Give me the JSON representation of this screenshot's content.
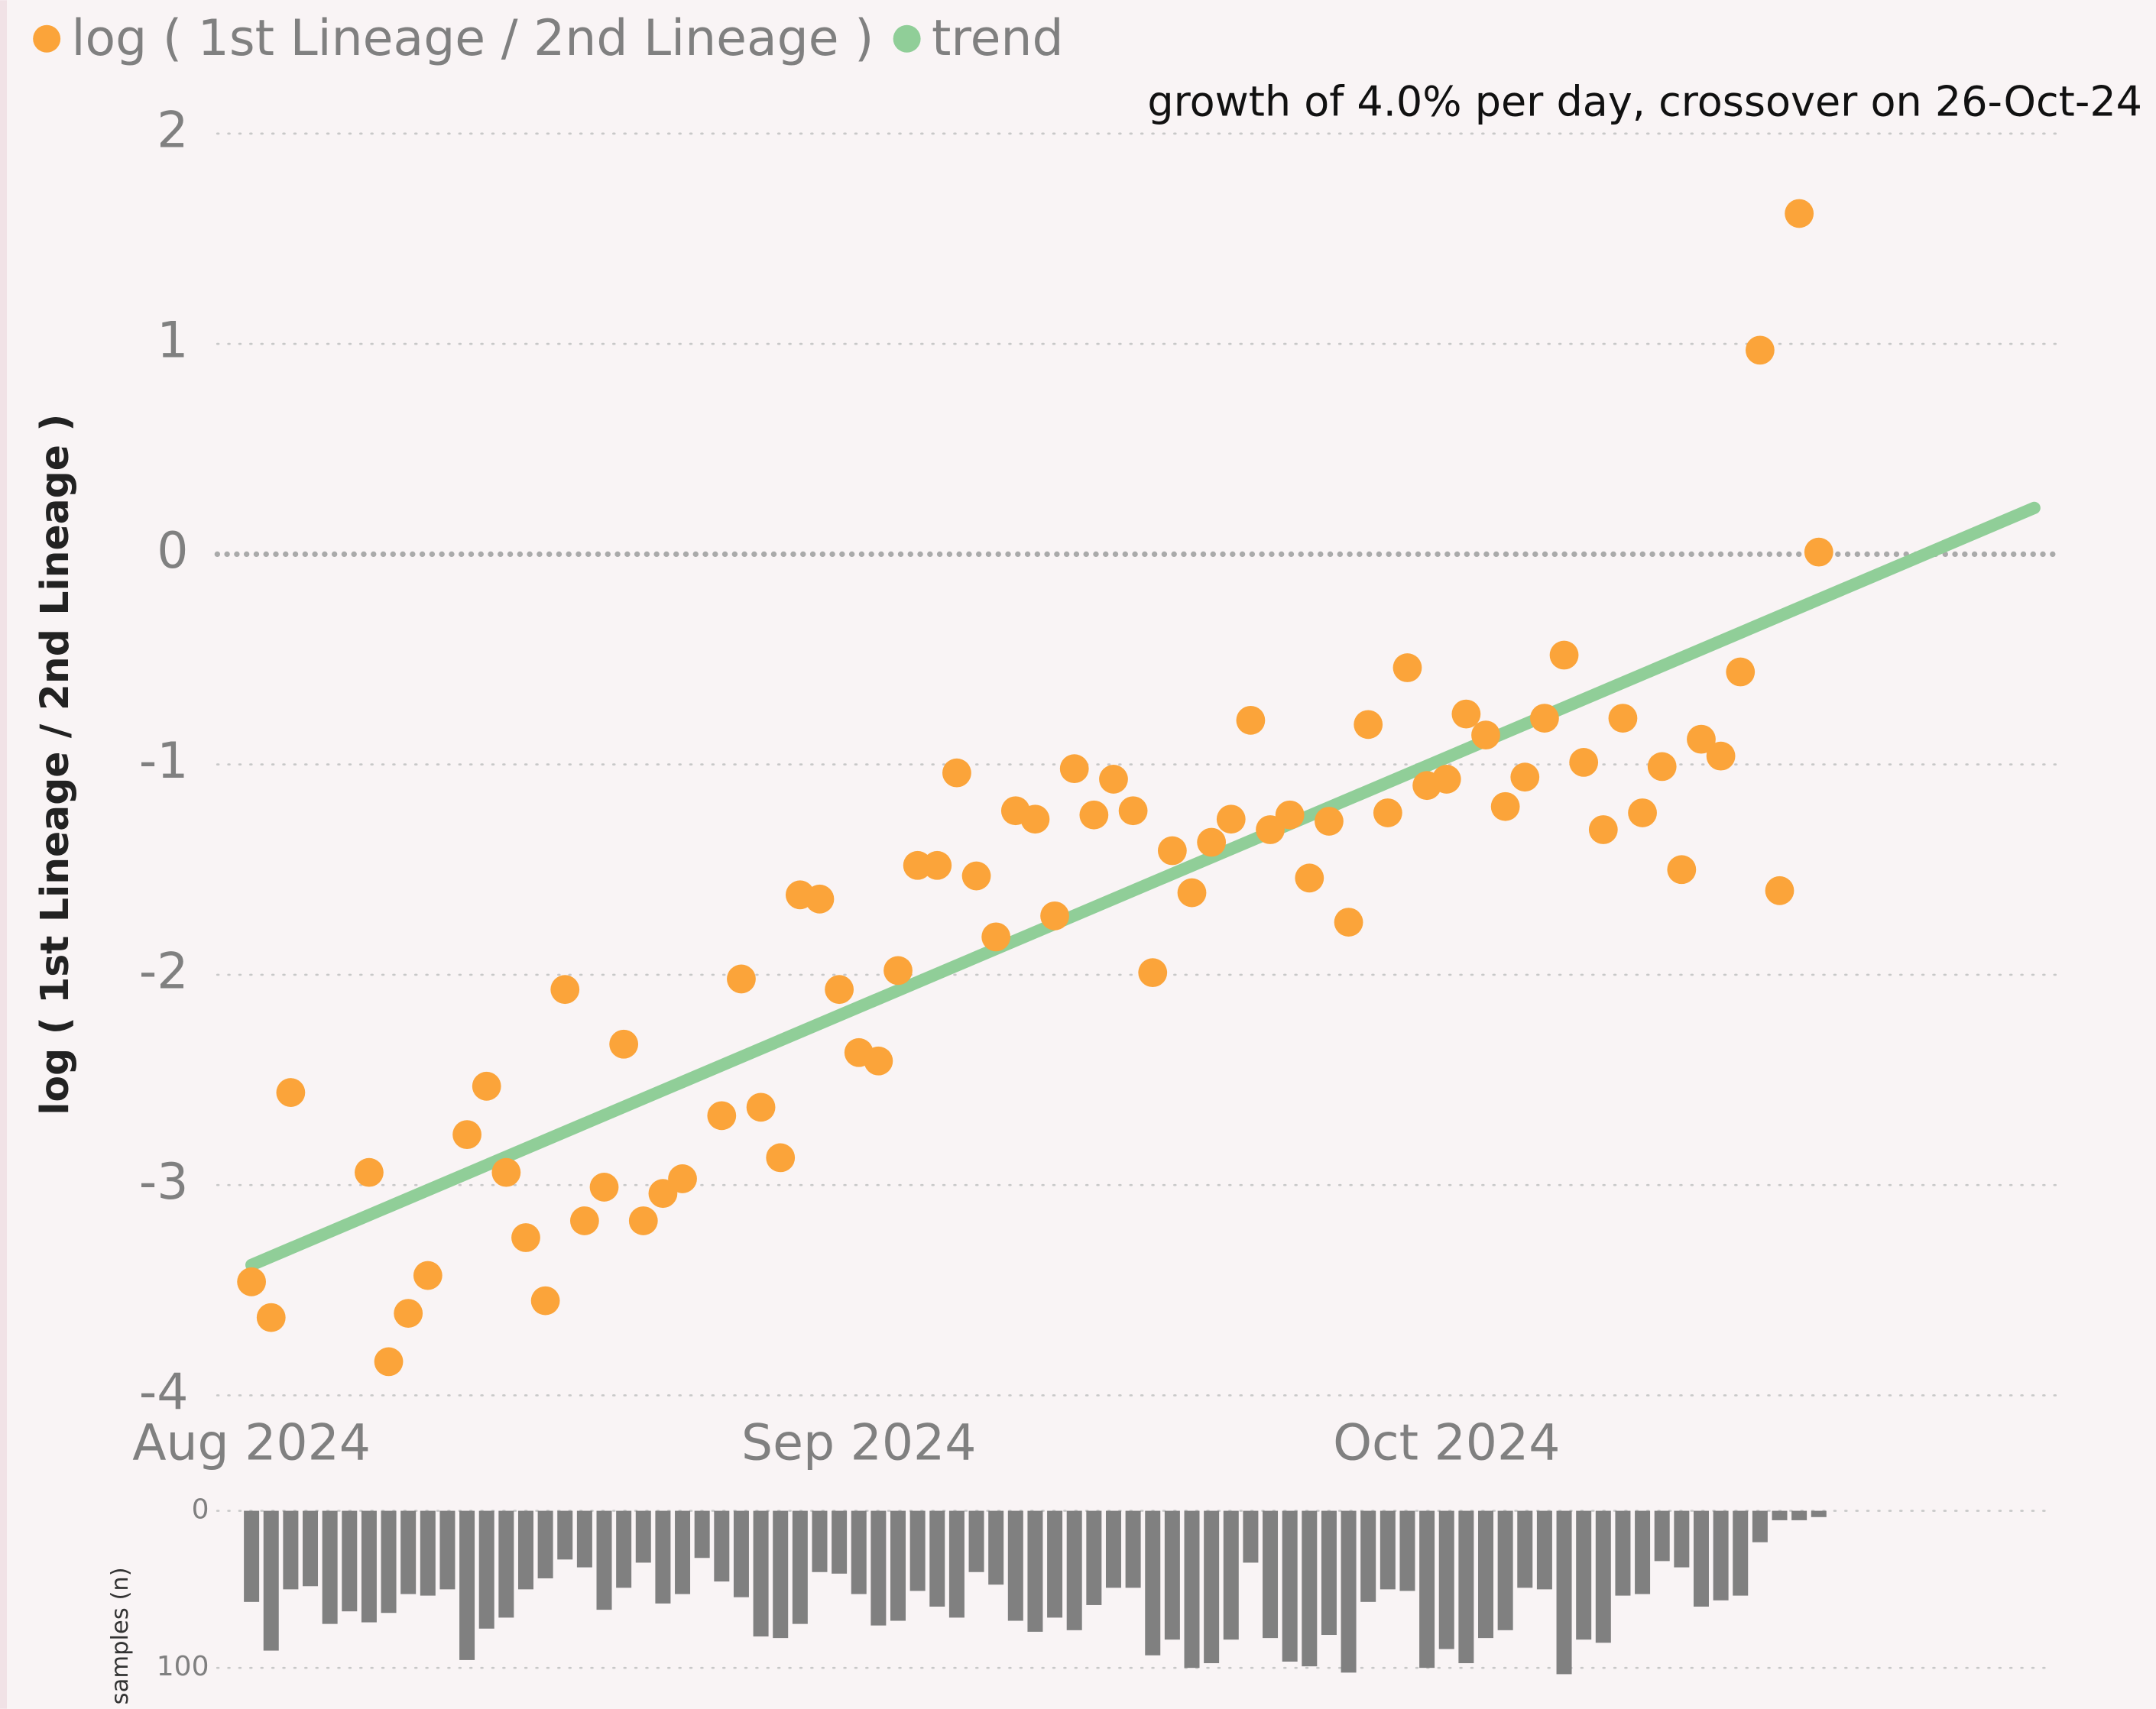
{
  "chart_data": [
    {
      "type": "scatter",
      "annotation": "growth of 4.0% per day, crossover on 26-Oct-24",
      "y_label": "log ( 1st Lineage / 2nd Lineage )",
      "xlim": [
        -1.75,
        92.3
      ],
      "xticks": [
        {
          "value": 0,
          "label": "Aug 2024"
        },
        {
          "value": 31,
          "label": "Sep 2024"
        },
        {
          "value": 61,
          "label": "Oct 2024"
        }
      ],
      "ylim": [
        -4,
        2
      ],
      "yticks": [
        -4,
        -3,
        -2,
        -1,
        0,
        1,
        2
      ],
      "grid": true,
      "series": [
        {
          "name": "log ( 1st Lineage / 2nd Lineage )",
          "color": "#fba43a",
          "x": [
            0,
            1,
            2,
            6,
            7,
            8,
            9,
            11,
            12,
            13,
            14,
            15,
            16,
            17,
            18,
            19,
            20,
            21,
            22,
            24,
            25,
            26,
            27,
            28,
            29,
            30,
            31,
            32,
            33,
            34,
            35,
            36,
            37,
            38,
            39,
            40,
            41,
            42,
            43,
            44,
            45,
            46,
            47,
            48,
            49,
            50,
            51,
            52,
            53,
            54,
            55,
            56,
            57,
            58,
            59,
            60,
            61,
            62,
            63,
            64,
            65,
            66,
            67,
            68,
            69,
            70,
            71,
            72,
            73,
            74,
            75,
            76,
            77,
            78,
            79,
            80
          ],
          "values": [
            -3.46,
            -3.63,
            -2.56,
            -2.94,
            -3.84,
            -3.61,
            -3.43,
            -2.76,
            -2.53,
            -2.94,
            -3.25,
            -3.55,
            -2.07,
            -3.17,
            -3.01,
            -2.33,
            -3.17,
            -3.04,
            -2.97,
            -2.67,
            -2.02,
            -2.63,
            -2.87,
            -1.62,
            -1.64,
            -2.07,
            -2.37,
            -2.41,
            -1.98,
            -1.48,
            -1.48,
            -1.04,
            -1.53,
            -1.82,
            -1.22,
            -1.26,
            -1.72,
            -1.02,
            -1.24,
            -1.07,
            -1.22,
            -1.99,
            -1.41,
            -1.61,
            -1.37,
            -1.26,
            -0.79,
            -1.31,
            -1.24,
            -1.54,
            -1.27,
            -1.75,
            -0.81,
            -1.23,
            -0.54,
            -1.1,
            -1.07,
            -0.76,
            -0.86,
            -1.2,
            -1.06,
            -0.78,
            -0.48,
            -0.99,
            -1.31,
            -0.78,
            -1.23,
            -1.01,
            -1.5,
            -0.88,
            -0.96,
            -0.56,
            0.97,
            -1.6,
            1.62,
            0.01
          ]
        },
        {
          "name": "trend",
          "type": "line",
          "color": "#90ce98",
          "x": [
            0,
            91
          ],
          "values": [
            -3.38,
            0.22
          ]
        }
      ]
    },
    {
      "type": "bar",
      "y_label": "samples (n)",
      "color": "#808080",
      "y_inverted": true,
      "xlim": [
        -1.75,
        92.3
      ],
      "ylim": [
        0,
        126
      ],
      "yticks": [
        0,
        100
      ],
      "grid": true,
      "x": [
        0,
        1,
        2,
        3,
        4,
        5,
        6,
        7,
        8,
        9,
        10,
        11,
        12,
        13,
        14,
        15,
        16,
        17,
        18,
        19,
        20,
        21,
        22,
        23,
        24,
        25,
        26,
        27,
        28,
        29,
        30,
        31,
        32,
        33,
        34,
        35,
        36,
        37,
        38,
        39,
        40,
        41,
        42,
        43,
        44,
        45,
        46,
        47,
        48,
        49,
        50,
        51,
        52,
        53,
        54,
        55,
        56,
        57,
        58,
        59,
        60,
        61,
        62,
        63,
        64,
        65,
        66,
        67,
        68,
        69,
        70,
        71,
        72,
        73,
        74,
        75,
        76,
        77,
        78,
        79,
        80
      ],
      "values": [
        58,
        89,
        50,
        48,
        72,
        64,
        71,
        65,
        53,
        54,
        50,
        95,
        75,
        68,
        50,
        43,
        31,
        36,
        63,
        49,
        33,
        59,
        53,
        30,
        45,
        55,
        80,
        81,
        72,
        39,
        40,
        53,
        73,
        70,
        51,
        61,
        68,
        39,
        47,
        70,
        77,
        68,
        76,
        60,
        49,
        49,
        92,
        82,
        100,
        97,
        82,
        33,
        81,
        96,
        99,
        79,
        103,
        58,
        50,
        51,
        100,
        88,
        97,
        81,
        76,
        49,
        50,
        104,
        82,
        84,
        54,
        53,
        32,
        36,
        61,
        57,
        54,
        20,
        6,
        6,
        4
      ]
    }
  ]
}
